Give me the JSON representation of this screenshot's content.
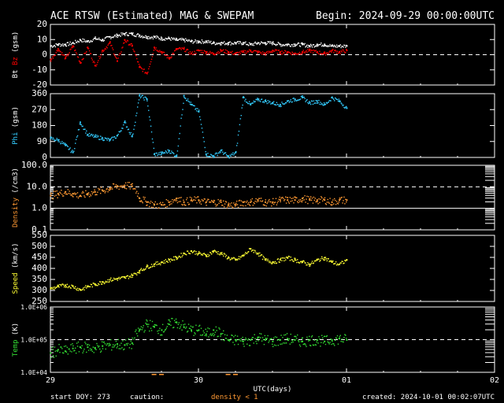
{
  "header": {
    "title": "ACE RTSW (Estimated) MAG & SWEPAM",
    "begin": "Begin: 2024-09-29 00:00:00UTC"
  },
  "footer": {
    "start_doy": "start DOY: 273",
    "caution": "caution:",
    "density_note": "density < 1",
    "created": "created: 2024-10-01 00:02:07UTC"
  },
  "colors": {
    "background": "#000000",
    "axis": "#ffffff",
    "bt": "#ffffff",
    "bz": "#ff0000",
    "phi": "#33ccff",
    "density": "#ff9933",
    "speed": "#ffff33",
    "temp": "#33dd33"
  },
  "chart_data": [
    {
      "type": "scatter",
      "ylabel_parts": [
        "Bt",
        "Bz",
        "(gsm)"
      ],
      "ylim": [
        -20,
        20
      ],
      "yticks": [
        -20,
        -10,
        0,
        10,
        20
      ],
      "ytick_labels": [
        "-20",
        "-10",
        "0",
        "10",
        "20"
      ],
      "dashed_lines": [
        0
      ],
      "xlim": [
        0,
        3
      ],
      "series": [
        {
          "name": "Bt",
          "x": [
            0,
            0.05,
            0.1,
            0.15,
            0.2,
            0.25,
            0.3,
            0.35,
            0.4,
            0.45,
            0.5,
            0.55,
            0.6,
            0.65,
            0.7,
            0.75,
            0.8,
            0.85,
            0.9,
            0.95,
            1.0,
            1.05,
            1.1,
            1.15,
            1.2,
            1.25,
            1.3,
            1.35,
            1.4,
            1.45,
            1.5,
            1.55,
            1.6,
            1.65,
            1.7,
            1.75,
            1.8,
            1.85,
            1.9,
            1.95,
            2.0
          ],
          "values": [
            6,
            7,
            7,
            8,
            10,
            9,
            11,
            10,
            12,
            13,
            14,
            14,
            13,
            12,
            12,
            11,
            11,
            10,
            10,
            9,
            9,
            9,
            8,
            8,
            8,
            8,
            8,
            7,
            8,
            8,
            8,
            7,
            7,
            7,
            7,
            6,
            7,
            7,
            6,
            6,
            6
          ]
        },
        {
          "name": "Bz",
          "x": [
            0,
            0.05,
            0.1,
            0.15,
            0.2,
            0.25,
            0.3,
            0.35,
            0.4,
            0.45,
            0.5,
            0.55,
            0.6,
            0.65,
            0.7,
            0.75,
            0.8,
            0.85,
            0.9,
            0.95,
            1.0,
            1.05,
            1.1,
            1.15,
            1.2,
            1.25,
            1.3,
            1.35,
            1.4,
            1.45,
            1.5,
            1.55,
            1.6,
            1.65,
            1.7,
            1.75,
            1.8,
            1.85,
            1.9,
            1.95,
            2.0
          ],
          "values": [
            -3,
            4,
            -2,
            6,
            -5,
            5,
            -7,
            3,
            8,
            -4,
            10,
            6,
            -8,
            -12,
            5,
            2,
            -2,
            4,
            4,
            1,
            3,
            2,
            1,
            3,
            2,
            1,
            2,
            3,
            2,
            1,
            3,
            2,
            2,
            1,
            2,
            3,
            2,
            1,
            3,
            2,
            3
          ]
        }
      ]
    },
    {
      "type": "scatter",
      "ylabel_parts": [
        "Phi",
        "(gsm)"
      ],
      "ylim": [
        0,
        360
      ],
      "yticks": [
        0,
        90,
        180,
        270,
        360
      ],
      "ytick_labels": [
        "0",
        "90",
        "180",
        "270",
        "360"
      ],
      "xlim": [
        0,
        3
      ],
      "series": [
        {
          "name": "Phi",
          "x": [
            0,
            0.05,
            0.1,
            0.15,
            0.2,
            0.25,
            0.3,
            0.35,
            0.4,
            0.45,
            0.5,
            0.55,
            0.6,
            0.65,
            0.7,
            0.75,
            0.8,
            0.85,
            0.9,
            0.95,
            1.0,
            1.05,
            1.1,
            1.15,
            1.2,
            1.25,
            1.3,
            1.35,
            1.4,
            1.45,
            1.5,
            1.55,
            1.6,
            1.65,
            1.7,
            1.75,
            1.8,
            1.85,
            1.9,
            1.95,
            2.0
          ],
          "values": [
            110,
            100,
            70,
            30,
            200,
            130,
            120,
            110,
            100,
            125,
            200,
            120,
            350,
            330,
            20,
            25,
            40,
            10,
            350,
            300,
            260,
            20,
            10,
            40,
            5,
            30,
            340,
            300,
            330,
            320,
            310,
            300,
            320,
            330,
            340,
            310,
            320,
            300,
            340,
            320,
            280
          ]
        }
      ]
    },
    {
      "type": "scatter",
      "ylabel_parts": [
        "Density",
        "(/cm3)"
      ],
      "yscale": "log",
      "ylim": [
        0.1,
        100
      ],
      "yticks": [
        0.1,
        1,
        10,
        100
      ],
      "ytick_labels": [
        "0.1",
        "1.0",
        "10.0",
        "100.0"
      ],
      "dashed_lines": [
        10
      ],
      "solid_lines": [
        1
      ],
      "xlim": [
        0,
        3
      ],
      "series": [
        {
          "name": "Density",
          "x": [
            0,
            0.05,
            0.1,
            0.15,
            0.2,
            0.25,
            0.3,
            0.35,
            0.4,
            0.45,
            0.5,
            0.55,
            0.6,
            0.65,
            0.7,
            0.75,
            0.8,
            0.85,
            0.9,
            0.95,
            1.0,
            1.05,
            1.1,
            1.15,
            1.2,
            1.25,
            1.3,
            1.35,
            1.4,
            1.45,
            1.5,
            1.55,
            1.6,
            1.65,
            1.7,
            1.75,
            1.8,
            1.85,
            1.9,
            1.95,
            2.0
          ],
          "values": [
            4,
            5,
            6,
            5,
            4,
            5,
            6,
            7,
            9,
            11,
            12,
            11,
            3,
            2,
            1.5,
            1.5,
            2,
            3,
            2,
            2.5,
            2.5,
            2,
            2,
            2,
            1.5,
            1.5,
            2,
            2,
            2.5,
            2,
            2,
            2.5,
            2.5,
            2.5,
            3,
            2.5,
            2.5,
            2.5,
            2,
            2.5,
            2.5
          ]
        }
      ]
    },
    {
      "type": "scatter",
      "ylabel_parts": [
        "Speed",
        "(km/s)"
      ],
      "ylim": [
        250,
        550
      ],
      "yticks": [
        250,
        300,
        350,
        400,
        450,
        500,
        550
      ],
      "ytick_labels": [
        "250",
        "300",
        "350",
        "400",
        "450",
        "500",
        "550"
      ],
      "xlim": [
        0,
        3
      ],
      "series": [
        {
          "name": "Speed",
          "x": [
            0,
            0.05,
            0.1,
            0.15,
            0.2,
            0.25,
            0.3,
            0.35,
            0.4,
            0.45,
            0.5,
            0.55,
            0.6,
            0.65,
            0.7,
            0.75,
            0.8,
            0.85,
            0.9,
            0.95,
            1.0,
            1.05,
            1.1,
            1.15,
            1.2,
            1.25,
            1.3,
            1.35,
            1.4,
            1.45,
            1.5,
            1.55,
            1.6,
            1.65,
            1.7,
            1.75,
            1.8,
            1.85,
            1.9,
            1.95,
            2.0
          ],
          "values": [
            310,
            320,
            325,
            320,
            305,
            320,
            330,
            340,
            350,
            355,
            360,
            370,
            390,
            410,
            420,
            430,
            440,
            450,
            470,
            480,
            470,
            460,
            480,
            470,
            450,
            440,
            460,
            490,
            470,
            440,
            430,
            440,
            450,
            440,
            430,
            420,
            440,
            450,
            430,
            420,
            440
          ]
        }
      ]
    },
    {
      "type": "scatter",
      "ylabel_parts": [
        "Temp",
        "(K)"
      ],
      "yscale": "log",
      "ylim": [
        10000,
        1000000
      ],
      "yticks": [
        10000,
        100000,
        1000000
      ],
      "ytick_labels": [
        "1.0E+04",
        "1.0E+05",
        "1.0E+06"
      ],
      "dashed_lines": [
        100000
      ],
      "xlim": [
        0,
        3
      ],
      "xticks": [
        0,
        1,
        2,
        3
      ],
      "xtick_labels": [
        "29",
        "30",
        "01",
        "02"
      ],
      "xlabel": "UTC(days)",
      "series": [
        {
          "name": "Temp",
          "x": [
            0,
            0.05,
            0.1,
            0.15,
            0.2,
            0.25,
            0.3,
            0.35,
            0.4,
            0.45,
            0.5,
            0.55,
            0.6,
            0.65,
            0.7,
            0.75,
            0.8,
            0.85,
            0.9,
            0.95,
            1.0,
            1.05,
            1.1,
            1.15,
            1.2,
            1.25,
            1.3,
            1.35,
            1.4,
            1.45,
            1.5,
            1.55,
            1.6,
            1.65,
            1.7,
            1.75,
            1.8,
            1.85,
            1.9,
            1.95,
            2.0
          ],
          "values": [
            40000,
            50000,
            45000,
            55000,
            60000,
            60000,
            55000,
            65000,
            70000,
            75000,
            70000,
            80000,
            200000,
            300000,
            250000,
            200000,
            300000,
            350000,
            250000,
            200000,
            200000,
            150000,
            200000,
            150000,
            100000,
            100000,
            90000,
            100000,
            120000,
            100000,
            90000,
            100000,
            110000,
            100000,
            90000,
            100000,
            100000,
            90000,
            100000,
            110000,
            100000
          ]
        }
      ]
    }
  ]
}
